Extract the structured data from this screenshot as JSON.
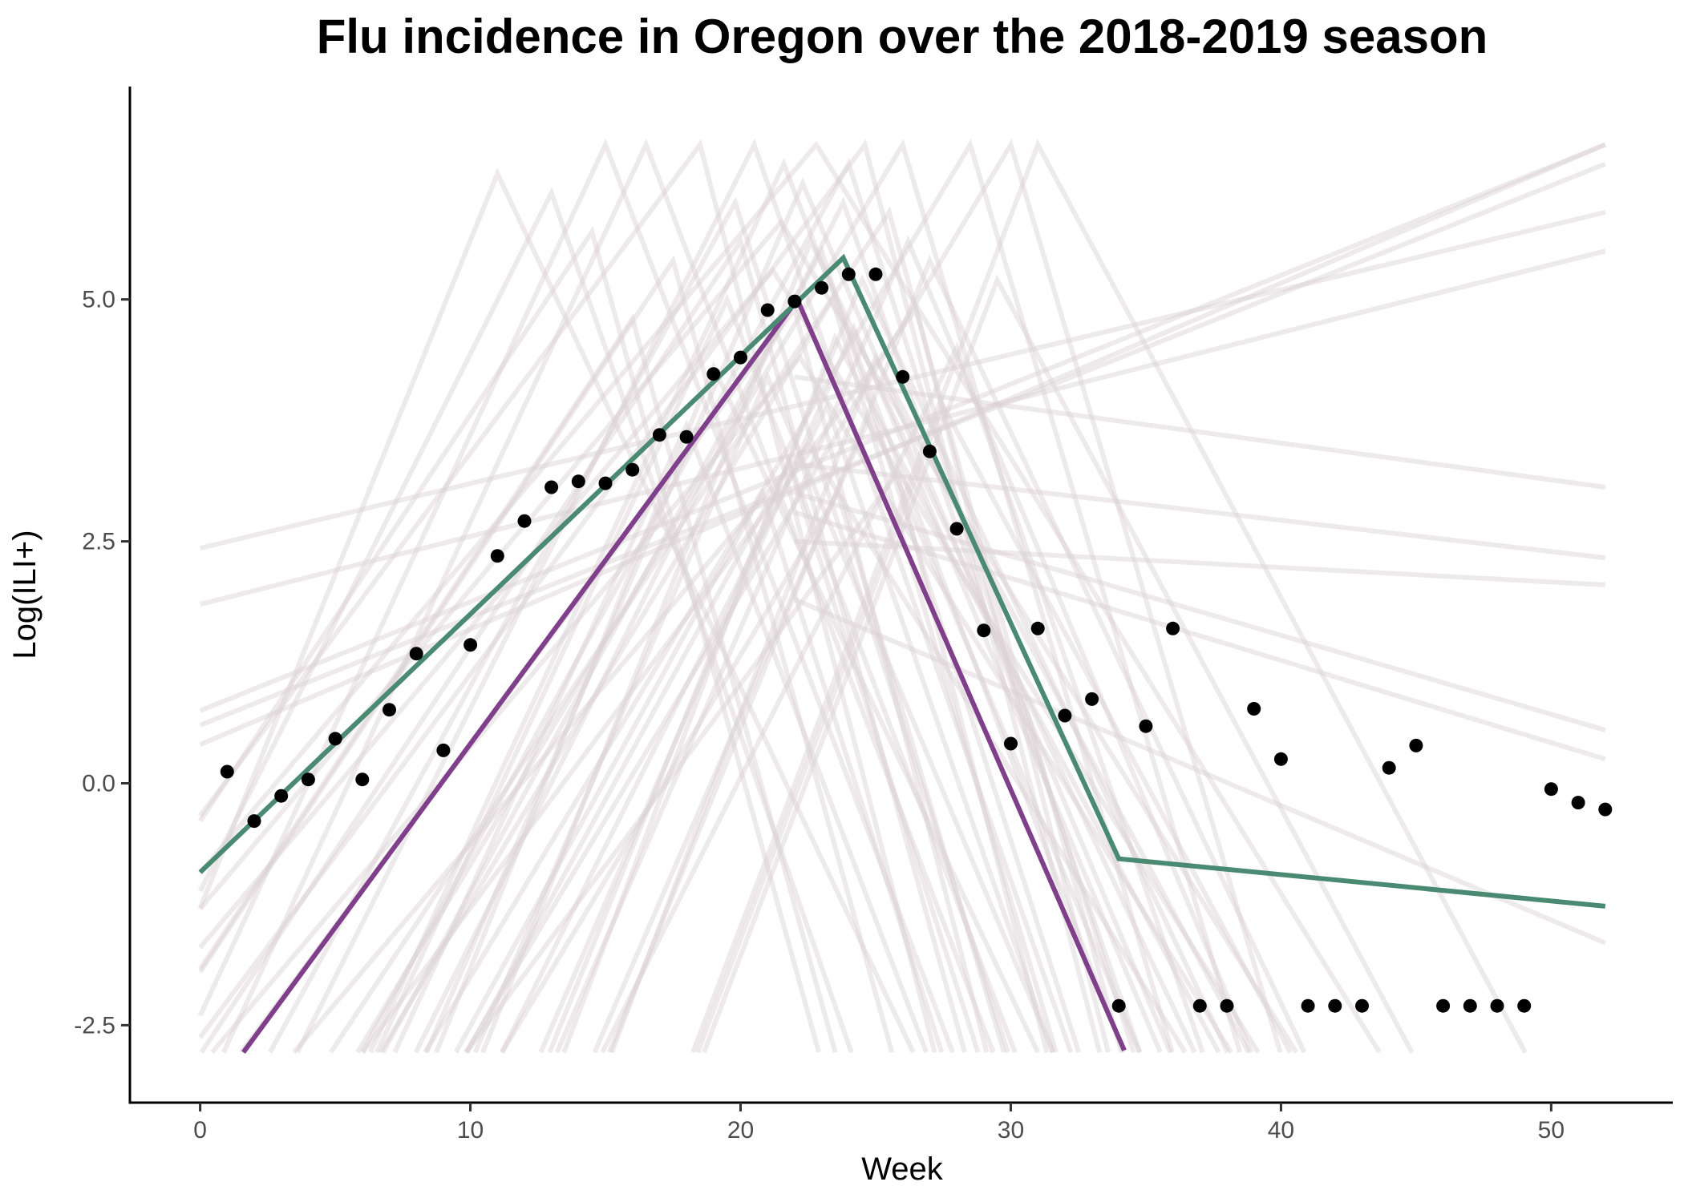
{
  "chart_data": {
    "type": "line",
    "title": "Flu incidence in Oregon over the 2018-2019 season",
    "xlabel": "Week",
    "ylabel": "Log(ILI+)",
    "xlim": [
      -2.6,
      54.5
    ],
    "ylim": [
      -3.3,
      7.2
    ],
    "x_ticks": [
      0,
      10,
      20,
      30,
      40,
      50
    ],
    "x_tick_labels": [
      "0",
      "10",
      "20",
      "30",
      "40",
      "50"
    ],
    "y_ticks": [
      -2.5,
      0,
      2.5,
      5
    ],
    "y_tick_labels": [
      "-2.5",
      "0.0",
      "2.5",
      "5.0"
    ],
    "grid": false,
    "legend": "none",
    "colors": {
      "observed": "#000000",
      "fit_green": "#4a8a73",
      "fit_purple": "#7f3f8a",
      "samples": "#d9d1d4"
    },
    "observed": [
      {
        "week": 1,
        "value": 0.12
      },
      {
        "week": 2,
        "value": -0.39
      },
      {
        "week": 3,
        "value": -0.13
      },
      {
        "week": 4,
        "value": 0.04
      },
      {
        "week": 5,
        "value": 0.46
      },
      {
        "week": 6,
        "value": 0.04
      },
      {
        "week": 7,
        "value": 0.76
      },
      {
        "week": 8,
        "value": 1.34
      },
      {
        "week": 9,
        "value": 0.34
      },
      {
        "week": 10,
        "value": 1.43
      },
      {
        "week": 11,
        "value": 2.35
      },
      {
        "week": 12,
        "value": 2.71
      },
      {
        "week": 13,
        "value": 3.06
      },
      {
        "week": 14,
        "value": 3.12
      },
      {
        "week": 15,
        "value": 3.1
      },
      {
        "week": 16,
        "value": 3.24
      },
      {
        "week": 17,
        "value": 3.6
      },
      {
        "week": 18,
        "value": 3.58
      },
      {
        "week": 19,
        "value": 4.23
      },
      {
        "week": 20,
        "value": 4.4
      },
      {
        "week": 21,
        "value": 4.89
      },
      {
        "week": 22,
        "value": 4.98
      },
      {
        "week": 23,
        "value": 5.12
      },
      {
        "week": 24,
        "value": 5.26
      },
      {
        "week": 25,
        "value": 5.26
      },
      {
        "week": 26,
        "value": 4.2
      },
      {
        "week": 27,
        "value": 3.43
      },
      {
        "week": 28,
        "value": 2.63
      },
      {
        "week": 29,
        "value": 1.58
      },
      {
        "week": 30,
        "value": 0.41
      },
      {
        "week": 31,
        "value": 1.6
      },
      {
        "week": 32,
        "value": 0.7
      },
      {
        "week": 33,
        "value": 0.87
      },
      {
        "week": 34,
        "value": -2.3
      },
      {
        "week": 35,
        "value": 0.59
      },
      {
        "week": 36,
        "value": 1.6
      },
      {
        "week": 37,
        "value": -2.3
      },
      {
        "week": 38,
        "value": -2.3
      },
      {
        "week": 39,
        "value": 0.77
      },
      {
        "week": 40,
        "value": 0.25
      },
      {
        "week": 41,
        "value": -2.3
      },
      {
        "week": 42,
        "value": -2.3
      },
      {
        "week": 43,
        "value": -2.3
      },
      {
        "week": 44,
        "value": 0.16
      },
      {
        "week": 45,
        "value": 0.39
      },
      {
        "week": 46,
        "value": -2.3
      },
      {
        "week": 47,
        "value": -2.3
      },
      {
        "week": 48,
        "value": -2.3
      },
      {
        "week": 49,
        "value": -2.3
      },
      {
        "week": 50,
        "value": -0.06
      },
      {
        "week": 51,
        "value": -0.2
      },
      {
        "week": 52,
        "value": -0.27
      }
    ],
    "fit_green": [
      {
        "week": 0,
        "value": -0.92
      },
      {
        "week": 23.8,
        "value": 5.43
      },
      {
        "week": 34,
        "value": -0.78
      },
      {
        "week": 52,
        "value": -1.27
      }
    ],
    "fit_purple": [
      {
        "week": 1.6,
        "value": -2.78
      },
      {
        "week": 22.1,
        "value": 5.0
      },
      {
        "week": 34.2,
        "value": -2.76
      }
    ],
    "sample_peaks": [
      {
        "week": 21.5,
        "value": 5.8
      },
      {
        "week": 22.3,
        "value": 6.2
      },
      {
        "week": 23.0,
        "value": 5.5
      },
      {
        "week": 22.0,
        "value": 4.9
      },
      {
        "week": 24.5,
        "value": 5.2
      },
      {
        "week": 20.5,
        "value": 6.6
      },
      {
        "week": 25.5,
        "value": 5.9
      },
      {
        "week": 23.5,
        "value": 4.6
      },
      {
        "week": 19.5,
        "value": 5.0
      },
      {
        "week": 26.0,
        "value": 6.6
      },
      {
        "week": 22.8,
        "value": 6.6
      },
      {
        "week": 21.0,
        "value": 4.2
      },
      {
        "week": 24.0,
        "value": 6.4
      },
      {
        "week": 18.5,
        "value": 6.6
      },
      {
        "week": 27.0,
        "value": 5.4
      },
      {
        "week": 23.2,
        "value": 3.9
      },
      {
        "week": 20.0,
        "value": 5.6
      },
      {
        "week": 25.0,
        "value": 4.4
      },
      {
        "week": 16.5,
        "value": 6.6
      },
      {
        "week": 28.5,
        "value": 6.6
      },
      {
        "week": 22.5,
        "value": 3.5
      },
      {
        "week": 24.8,
        "value": 3.8
      },
      {
        "week": 21.8,
        "value": 3.3
      },
      {
        "week": 26.5,
        "value": 4.9
      },
      {
        "week": 19.0,
        "value": 4.3
      },
      {
        "week": 23.8,
        "value": 6.0
      },
      {
        "week": 17.5,
        "value": 5.4
      },
      {
        "week": 29.5,
        "value": 5.2
      },
      {
        "week": 15.0,
        "value": 6.6
      },
      {
        "week": 30.0,
        "value": 6.6
      },
      {
        "week": 22.2,
        "value": 4.4
      },
      {
        "week": 24.2,
        "value": 4.7
      },
      {
        "week": 20.8,
        "value": 3.0
      },
      {
        "week": 25.8,
        "value": 3.2
      },
      {
        "week": 11.0,
        "value": 6.3
      },
      {
        "week": 13.0,
        "value": 6.1
      },
      {
        "week": 14.5,
        "value": 5.7
      },
      {
        "week": 27.5,
        "value": 3.9
      },
      {
        "week": 18.0,
        "value": 3.7
      },
      {
        "week": 23.4,
        "value": 5.0
      },
      {
        "week": 21.2,
        "value": 5.3
      },
      {
        "week": 26.2,
        "value": 5.6
      },
      {
        "week": 19.8,
        "value": 6.0
      },
      {
        "week": 24.6,
        "value": 6.6
      },
      {
        "week": 22.6,
        "value": 5.6
      },
      {
        "week": 28.0,
        "value": 4.5
      },
      {
        "week": 16.0,
        "value": 4.8
      },
      {
        "week": 31.0,
        "value": 6.6
      },
      {
        "week": 21.6,
        "value": 6.4
      },
      {
        "week": 23.6,
        "value": 3.0
      }
    ],
    "sample_rising": [
      {
        "start": 2.43,
        "end": 5.9
      },
      {
        "start": 1.85,
        "end": 5.5
      },
      {
        "start": 0.75,
        "end": 6.6
      },
      {
        "start": 0.6,
        "end": 6.4
      },
      {
        "start": 0.4,
        "end": 6.6
      }
    ],
    "sample_declining": [
      {
        "start": 1.2,
        "end": 3.06
      },
      {
        "start": 0.3,
        "end": 2.33
      },
      {
        "start": -0.5,
        "end": 2.05
      },
      {
        "start": 0.0,
        "end": 0.55
      },
      {
        "start": -0.2,
        "end": 0.25
      },
      {
        "start": -1.1,
        "end": -1.65
      }
    ]
  }
}
